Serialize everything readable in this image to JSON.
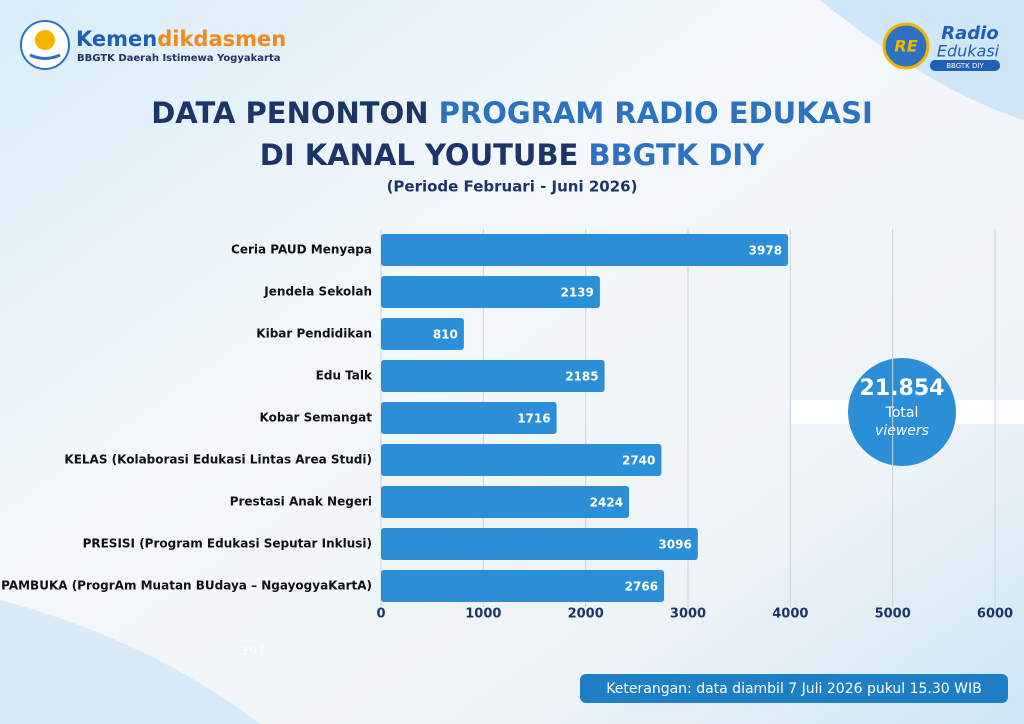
{
  "header": {
    "logo_left": {
      "name_a": "Kemen",
      "name_b": "dikdasmen",
      "subtitle": "BBGTK Daerah Istimewa Yogyakarta"
    },
    "logo_right": {
      "mark": "RE",
      "line1": "Radio",
      "line2": "Edukasi",
      "line3": "BBGTK DIY"
    }
  },
  "chart_data": {
    "type": "bar",
    "orientation": "horizontal",
    "title_parts": [
      [
        {
          "text": "DATA PENONTON ",
          "color": "#1c3467"
        },
        {
          "text": "PROGRAM RADIO EDUKASI",
          "color": "#2c72c0"
        }
      ],
      [
        {
          "text": "DI KANAL YOUTUBE ",
          "color": "#1c3467"
        },
        {
          "text": "BBGTK DIY",
          "color": "#2c72c0"
        }
      ]
    ],
    "subtitle": "(Periode Februari - Juni 2026)",
    "categories": [
      "Ceria PAUD Menyapa",
      "Jendela Sekolah",
      "Kibar Pendidikan",
      "Edu Talk",
      "Kobar Semangat",
      "KELAS (Kolaborasi Edukasi Lintas Area Studi)",
      "Prestasi Anak Negeri",
      "PRESISI (Program Edukasi Seputar Inklusi)",
      "PAMBUKA (ProgrAm Muatan BUdaya – NgayogyaKartA)"
    ],
    "values": [
      3978,
      2139,
      810,
      2185,
      1716,
      2740,
      2424,
      3096,
      2766
    ],
    "color": "#2a8fd6",
    "xlim": [
      0,
      6000
    ],
    "xticks": [
      0,
      1000,
      2000,
      3000,
      4000,
      5000,
      6000
    ],
    "grid": true
  },
  "badge": {
    "number": "21.854",
    "line1": "Total",
    "line2": "viewers"
  },
  "watermark": "391",
  "note": "Keterangan: data diambil 7 Juli 2026 pukul 15.30 WIB"
}
